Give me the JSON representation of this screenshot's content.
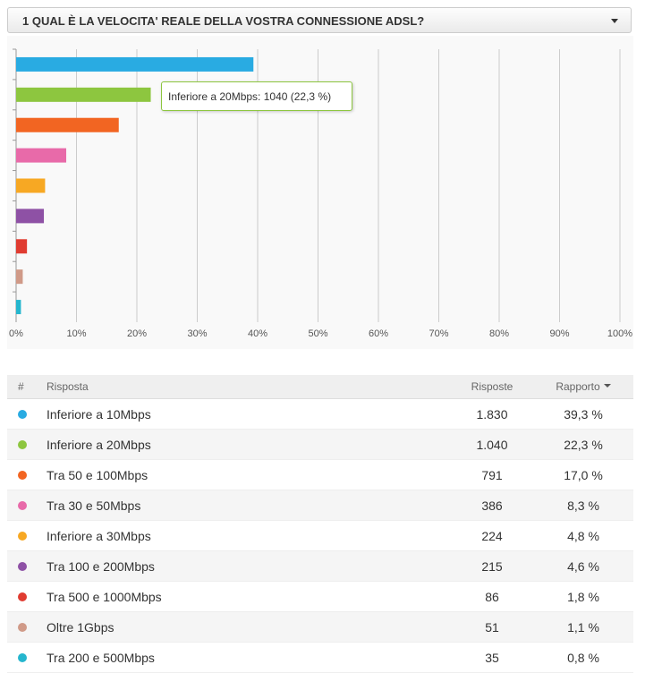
{
  "header": {
    "title": "1 QUAL È LA VELOCITA' REALE DELLA VOSTRA CONNESSIONE ADSL?"
  },
  "chart_data": {
    "type": "bar",
    "orientation": "horizontal",
    "values": [
      39.3,
      22.3,
      17.0,
      8.3,
      4.8,
      4.6,
      1.8,
      1.1,
      0.8
    ],
    "colors": [
      "#29abe2",
      "#8dc63f",
      "#f26522",
      "#e86aa9",
      "#f7a823",
      "#8e51a5",
      "#e03c31",
      "#d09a88",
      "#25b6ce"
    ],
    "xlim": [
      0,
      100
    ],
    "xticks": [
      {
        "value": 0,
        "label": "0%"
      },
      {
        "value": 10,
        "label": "10%"
      },
      {
        "value": 20,
        "label": "20%"
      },
      {
        "value": 30,
        "label": "30%"
      },
      {
        "value": 40,
        "label": "40%"
      },
      {
        "value": 50,
        "label": "50%"
      },
      {
        "value": 60,
        "label": "60%"
      },
      {
        "value": 70,
        "label": "70%"
      },
      {
        "value": 80,
        "label": "80%"
      },
      {
        "value": 90,
        "label": "90%"
      },
      {
        "value": 100,
        "label": "100%"
      }
    ],
    "grid": true
  },
  "tooltip": {
    "text": "Inferiore a 20Mbps: 1040 (22,3 %)"
  },
  "table": {
    "columns": [
      "#",
      "Risposta",
      "Risposte",
      "Rapporto"
    ],
    "rows": [
      [
        "Inferiore a 10Mbps",
        "1.830",
        "39,3 %"
      ],
      [
        "Inferiore a 20Mbps",
        "1.040",
        "22,3 %"
      ],
      [
        "Tra 50 e 100Mbps",
        "791",
        "17,0 %"
      ],
      [
        "Tra 30 e 50Mbps",
        "386",
        "8,3 %"
      ],
      [
        "Inferiore a 30Mbps",
        "224",
        "4,8 %"
      ],
      [
        "Tra 100 e 200Mbps",
        "215",
        "4,6 %"
      ],
      [
        "Tra 500 e 1000Mbps",
        "86",
        "1,8 %"
      ],
      [
        "Oltre 1Gbps",
        "51",
        "1,1 %"
      ],
      [
        "Tra 200 e 500Mbps",
        "35",
        "0,8 %"
      ]
    ]
  }
}
